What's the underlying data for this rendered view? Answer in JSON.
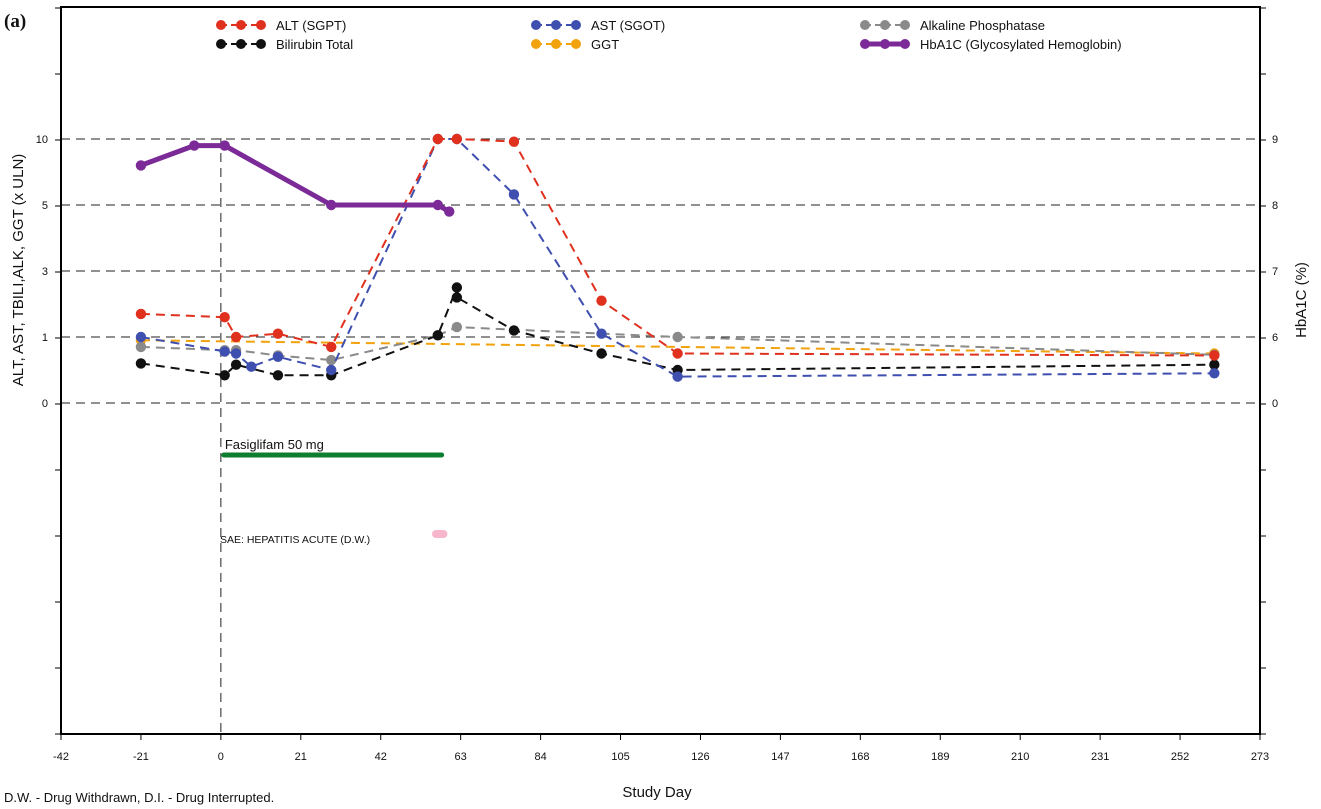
{
  "panel_label": "(a)",
  "footnote": "D.W. - Drug Withdrawn, D.I. - Drug Interrupted.",
  "chart_data": {
    "type": "line",
    "title": "",
    "xlabel": "Study Day",
    "ylabel": "ALT, AST, TBILI,ALK, GGT (x ULN)",
    "y2label": "HbA1C (%)",
    "xlim": [
      -42,
      273
    ],
    "x_ticks": [
      -42,
      -21,
      0,
      21,
      42,
      63,
      84,
      105,
      126,
      147,
      168,
      189,
      210,
      231,
      252,
      273
    ],
    "y_tick_labels": [
      "0",
      "1",
      "3",
      "5",
      "10"
    ],
    "y_tick_values": [
      0,
      1,
      3,
      5,
      10
    ],
    "y2_tick_labels": [
      "0",
      "6",
      "7",
      "8",
      "9"
    ],
    "y2_tick_values": [
      0,
      6,
      7,
      8,
      9
    ],
    "grid": "horizontal dashed at labeled ticks",
    "legend_position": "top",
    "series": [
      {
        "name": "ALT (SGPT)",
        "axis": "left",
        "color": "#e0301e",
        "style": "dashed",
        "x": [
          -21,
          1,
          4,
          15,
          29,
          57,
          62,
          77,
          100,
          120,
          261
        ],
        "y": [
          1.7,
          1.6,
          1.0,
          1.1,
          0.85,
          10.0,
          10.0,
          9.8,
          2.1,
          0.75,
          0.72
        ]
      },
      {
        "name": "AST (SGOT)",
        "axis": "left",
        "color": "#3f4faf",
        "style": "dashed",
        "x": [
          -21,
          1,
          4,
          8,
          15,
          29,
          57,
          62,
          77,
          100,
          120,
          261
        ],
        "y": [
          1.0,
          0.78,
          0.75,
          0.55,
          0.7,
          0.5,
          10.0,
          10.0,
          5.8,
          1.1,
          0.4,
          0.45
        ]
      },
      {
        "name": "Alkaline Phosphatase",
        "axis": "left",
        "color": "#8a8a8a",
        "style": "dashed",
        "x": [
          -21,
          1,
          4,
          15,
          29,
          57,
          62,
          120,
          261
        ],
        "y": [
          0.85,
          0.8,
          0.8,
          0.72,
          0.65,
          1.05,
          1.3,
          1.0,
          0.73
        ]
      },
      {
        "name": "Bilirubin Total",
        "axis": "left",
        "color": "#111111",
        "style": "dashed",
        "x": [
          -21,
          1,
          4,
          15,
          29,
          57,
          62,
          62,
          77,
          100,
          120,
          261
        ],
        "y": [
          0.6,
          0.42,
          0.58,
          0.42,
          0.42,
          1.05,
          2.5,
          2.2,
          1.2,
          0.75,
          0.5,
          0.58
        ]
      },
      {
        "name": "GGT",
        "axis": "left",
        "color": "#f2a20d",
        "style": "dashed",
        "x": [
          -21,
          261
        ],
        "y": [
          0.95,
          0.75
        ]
      },
      {
        "name": "HbA1C (Glycosylated Hemoglobin)",
        "axis": "right",
        "color": "#7b2a97",
        "style": "solid",
        "x": [
          -21,
          -7,
          1,
          29,
          57,
          60
        ],
        "y": [
          8.6,
          8.9,
          8.9,
          8.0,
          8.0,
          7.9
        ]
      }
    ],
    "annotations": [
      {
        "text": "Fasiglifam 50 mg",
        "color": "#0d7d2f",
        "x_start": 0,
        "x_end": 58,
        "kind": "dose-bar"
      },
      {
        "text": "SAE: HEPATITIS ACUTE (D.W.)",
        "color": "#f7b6cc",
        "x_start": 56,
        "x_end": 59,
        "kind": "event-bar"
      }
    ],
    "reference_line_x": 0
  }
}
